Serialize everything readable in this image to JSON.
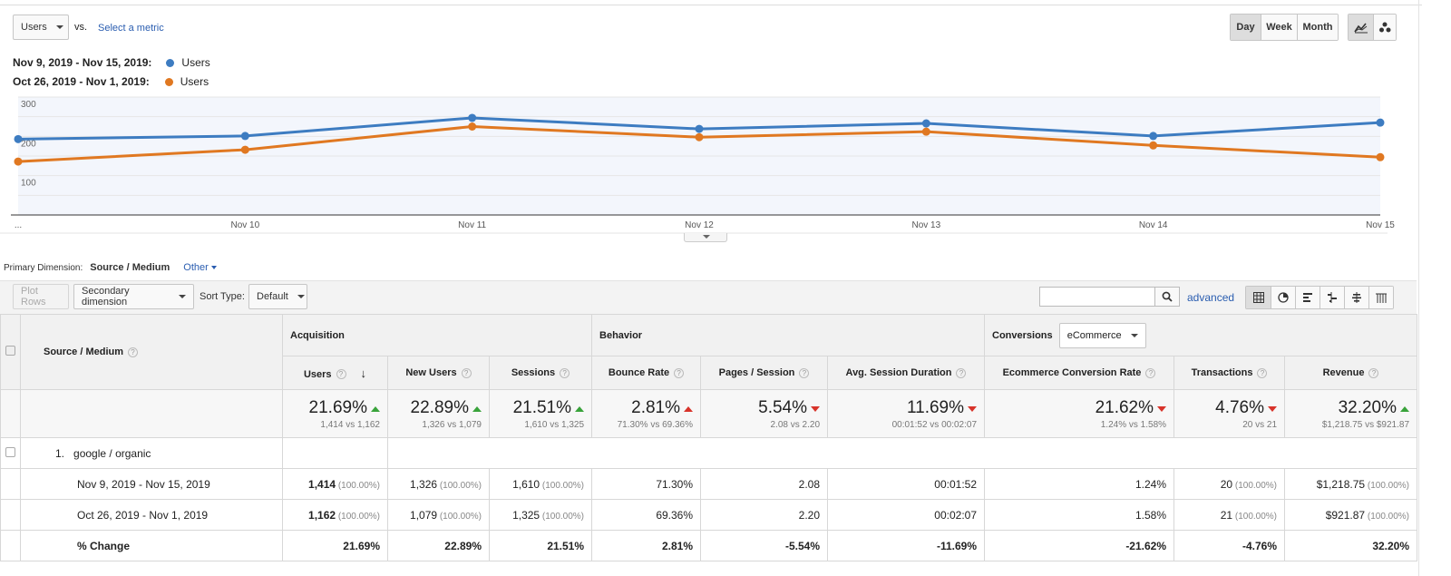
{
  "controls": {
    "metric_select": "Users",
    "vs_label": "vs.",
    "select_metric_link": "Select a metric",
    "periods": [
      "Day",
      "Week",
      "Month"
    ],
    "active_period": "Day",
    "chart_types": [
      "line-chart-icon",
      "motion-chart-icon"
    ]
  },
  "legend": [
    {
      "range": "Nov 9, 2019 - Nov 15, 2019:",
      "metric": "Users",
      "color": "#3d7cc1"
    },
    {
      "range": "Oct 26, 2019 - Nov 1, 2019:",
      "metric": "Users",
      "color": "#e07821"
    }
  ],
  "chart_data": {
    "type": "line",
    "categories": [
      "...",
      "Nov 10",
      "Nov 11",
      "Nov 12",
      "Nov 13",
      "Nov 14",
      "Nov 15"
    ],
    "ylim": [
      0,
      300
    ],
    "yticks": [
      "300",
      "200",
      "100"
    ],
    "series": [
      {
        "name": "Users",
        "color": "#3d7cc1",
        "values": [
          193,
          201,
          247,
          219,
          233,
          201,
          235
        ]
      },
      {
        "name": "Users",
        "color": "#e07821",
        "values": [
          136,
          166,
          225,
          198,
          212,
          177,
          147
        ]
      }
    ]
  },
  "primary_dimension": {
    "label": "Primary Dimension:",
    "value": "Source / Medium",
    "other": "Other"
  },
  "toolbar": {
    "plot_rows": "Plot Rows",
    "secondary_dimension": "Secondary dimension",
    "sort_type_label": "Sort Type:",
    "sort_type_value": "Default",
    "advanced": "advanced",
    "views": [
      "table-view-icon",
      "pie-view-icon",
      "performance-view-icon",
      "comparison-view-icon",
      "term-cloud-icon",
      "pivot-view-icon"
    ]
  },
  "table": {
    "dimension_header": "Source / Medium",
    "groups": {
      "acquisition": "Acquisition",
      "behavior": "Behavior",
      "conversions": "Conversions",
      "conversions_select": "eCommerce"
    },
    "columns": [
      "Users",
      "New Users",
      "Sessions",
      "Bounce Rate",
      "Pages / Session",
      "Avg. Session Duration",
      "Ecommerce Conversion Rate",
      "Transactions",
      "Revenue"
    ],
    "summary": [
      {
        "pct": "21.69%",
        "dir": "up",
        "sub": "1,414 vs 1,162"
      },
      {
        "pct": "22.89%",
        "dir": "up",
        "sub": "1,326 vs 1,079"
      },
      {
        "pct": "21.51%",
        "dir": "up",
        "sub": "1,610 vs 1,325"
      },
      {
        "pct": "2.81%",
        "dir": "upred",
        "sub": "71.30% vs 69.36%"
      },
      {
        "pct": "5.54%",
        "dir": "down",
        "sub": "2.08 vs 2.20"
      },
      {
        "pct": "11.69%",
        "dir": "down",
        "sub": "00:01:52 vs 00:02:07"
      },
      {
        "pct": "21.62%",
        "dir": "down",
        "sub": "1.24% vs 1.58%"
      },
      {
        "pct": "4.76%",
        "dir": "down",
        "sub": "20 vs 21"
      },
      {
        "pct": "32.20%",
        "dir": "up",
        "sub": "$1,218.75 vs $921.87"
      }
    ],
    "row_index": "1.",
    "row_source": "google / organic",
    "rows": [
      {
        "label": "Nov 9, 2019 - Nov 15, 2019",
        "cells": [
          [
            "1,414",
            "(100.00%)"
          ],
          [
            "1,326",
            "(100.00%)"
          ],
          [
            "1,610",
            "(100.00%)"
          ],
          [
            "71.30%",
            ""
          ],
          [
            "2.08",
            ""
          ],
          [
            "00:01:52",
            ""
          ],
          [
            "1.24%",
            ""
          ],
          [
            "20",
            "(100.00%)"
          ],
          [
            "$1,218.75",
            "(100.00%)"
          ]
        ]
      },
      {
        "label": "Oct 26, 2019 - Nov 1, 2019",
        "cells": [
          [
            "1,162",
            "(100.00%)"
          ],
          [
            "1,079",
            "(100.00%)"
          ],
          [
            "1,325",
            "(100.00%)"
          ],
          [
            "69.36%",
            ""
          ],
          [
            "2.20",
            ""
          ],
          [
            "00:02:07",
            ""
          ],
          [
            "1.58%",
            ""
          ],
          [
            "21",
            "(100.00%)"
          ],
          [
            "$921.87",
            "(100.00%)"
          ]
        ]
      }
    ],
    "change_label": "% Change",
    "change": [
      "21.69%",
      "22.89%",
      "21.51%",
      "2.81%",
      "-5.54%",
      "-11.69%",
      "-21.62%",
      "-4.76%",
      "32.20%"
    ]
  }
}
